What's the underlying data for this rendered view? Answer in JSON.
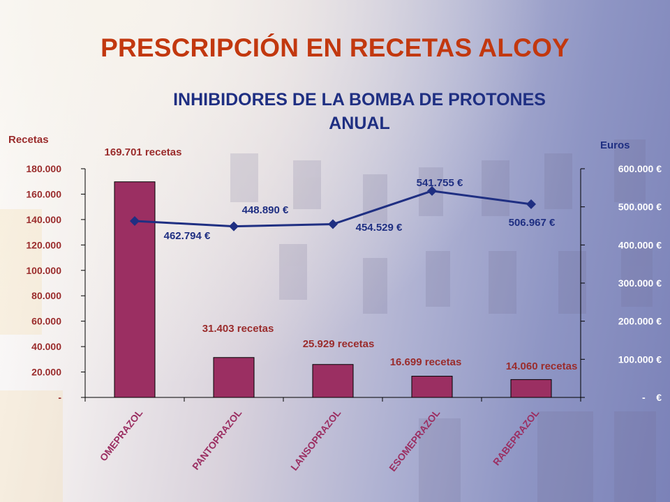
{
  "title": "PRESCRIPCIÓN EN RECETAS ALCOY",
  "subtitle_line1": "INHIBIDORES  DE LA BOMBA DE PROTONES",
  "subtitle_line2": "ANUAL",
  "colors": {
    "title": "#c2380f",
    "subtitle": "#1f2f82",
    "bar": "#9b2f62",
    "line": "#1f2f82",
    "left_axis_text": "#9a2c2c",
    "right_axis_text": "#ffffff",
    "bar_label": "#9a2c2c",
    "line_label": "#1f2f82"
  },
  "chart_data": {
    "type": "bar",
    "categories": [
      "OMEPRAZOL",
      "PANTOPRAZOL",
      "LANSOPRAZOL",
      "ESOMEPRAZOL",
      "RABEPRAZOL"
    ],
    "ylabel": "Recetas",
    "y2label": "Euros",
    "ylim": [
      0,
      180000
    ],
    "y2lim": [
      0,
      600000
    ],
    "yticks": [
      "-",
      "20.000",
      "40.000",
      "60.000",
      "80.000",
      "100.000",
      "120.000",
      "140.000",
      "160.000",
      "180.000"
    ],
    "y2ticks": [
      "-    €",
      "100.000 €",
      "200.000 €",
      "300.000 €",
      "400.000 €",
      "500.000 €",
      "600.000 €"
    ],
    "series": [
      {
        "type": "bar",
        "axis": "left",
        "values": [
          169701,
          31403,
          25929,
          16699,
          14060
        ],
        "labels": [
          "169.701 recetas",
          "31.403 recetas",
          "25.929 recetas",
          "16.699 recetas",
          "14.060 recetas"
        ]
      },
      {
        "type": "line",
        "axis": "right",
        "values": [
          462794,
          448890,
          454529,
          541755,
          506967
        ],
        "labels": [
          "462.794 €",
          "448.890 €",
          "454.529 €",
          "541.755 €",
          "506.967 €"
        ]
      }
    ],
    "grid": false
  }
}
